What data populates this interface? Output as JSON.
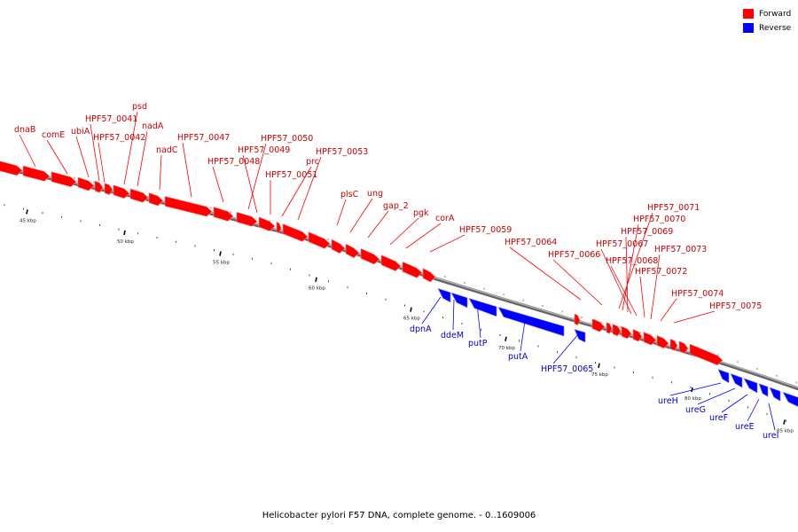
{
  "legend": [
    {
      "label": "Forward",
      "color": "#ff0000"
    },
    {
      "label": "Reverse",
      "color": "#0000ff"
    }
  ],
  "caption": "Helicobacter pylori F57 DNA, complete genome. - 0..1609006",
  "ticks": [
    "45 kbp",
    "50 kbp",
    "55 kbp",
    "60 kbp",
    "65 kbp",
    "70 kbp",
    "75 kbp",
    "80 kbp",
    "85 kbp"
  ],
  "genes_forward": [
    "dnaB",
    "comE",
    "ubiA",
    "HPF57_0041",
    "HPF57_0042",
    "psd",
    "nadA",
    "nadC",
    "HPF57_0047",
    "HPF57_0048",
    "HPF57_0050",
    "HPF57_0049",
    "HPF57_0051",
    "prc",
    "HPF57_0053",
    "plsC",
    "ung",
    "gap_2",
    "pgk",
    "corA",
    "HPF57_0059",
    "HPF57_0064",
    "HPF57_0066",
    "HPF57_0071",
    "HPF57_0070",
    "HPF57_0069",
    "HPF57_0067",
    "HPF57_0068",
    "HPF57_0073",
    "HPF57_0072",
    "HPF57_0074",
    "HPF57_0075"
  ],
  "genes_reverse": [
    "dpnA",
    "ddeM",
    "putP",
    "putA",
    "HPF57_0065",
    "ureH",
    "ureG",
    "ureF",
    "ureE",
    "ureI"
  ]
}
